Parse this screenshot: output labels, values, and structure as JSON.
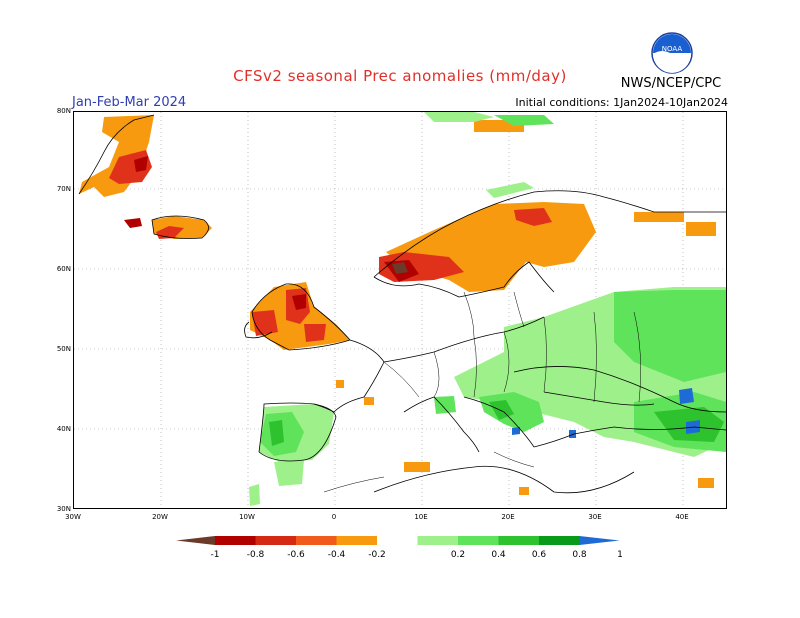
{
  "header": {
    "title": "CFSv2 seasonal Prec anomalies (mm/day)",
    "period": "Jan-Feb-Mar 2024",
    "initial_conditions": "Initial conditions: 1Jan2024-10Jan2024",
    "agency": "NWS/NCEP/CPC",
    "logo_text": "NOAA"
  },
  "axes": {
    "lat_labels": [
      "80N",
      "70N",
      "60N",
      "50N",
      "40N",
      "30N"
    ],
    "lon_labels": [
      "30W",
      "20W",
      "10W",
      "0",
      "10E",
      "20E",
      "30E",
      "40E"
    ]
  },
  "colorbar": {
    "labels": [
      "-1",
      "-0.8",
      "-0.6",
      "-0.4",
      "-0.2",
      "0.2",
      "0.4",
      "0.6",
      "0.8",
      "1"
    ],
    "colors": [
      "#6b3a2a",
      "#b00000",
      "#d42a14",
      "#f05a1a",
      "#f79a10",
      "#ffffff",
      "#9ef08a",
      "#5ee35a",
      "#2ec22e",
      "#0a9a1a",
      "#1f6bd6"
    ]
  },
  "map_legend_colors": {
    "dry_strong": "#b00000",
    "dry_moderate": "#e0321a",
    "dry_weak": "#f79a10",
    "wet_weak": "#9ef08a",
    "wet_moderate": "#5ee35a",
    "wet_strong": "#2ec22e",
    "wet_extreme": "#1f6bd6"
  }
}
